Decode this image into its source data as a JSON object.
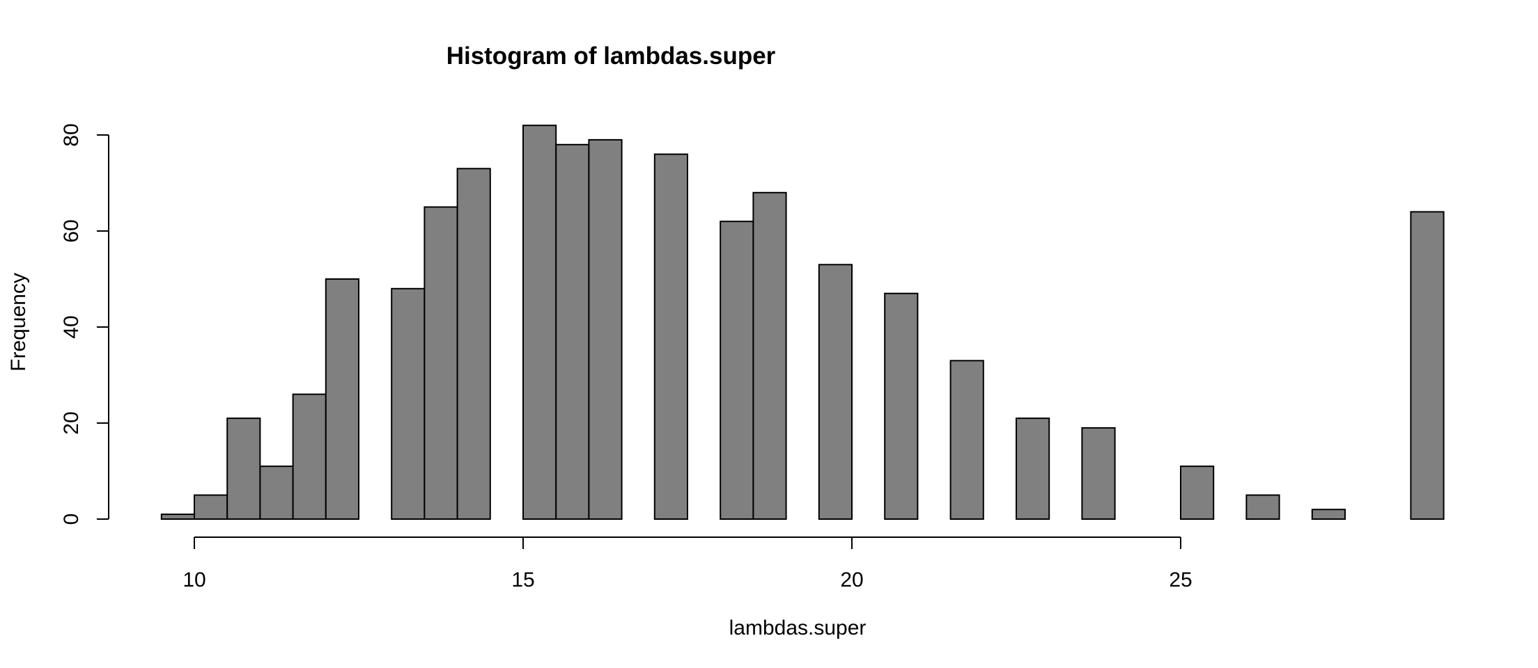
{
  "chart_data": {
    "type": "bar",
    "title": "Histogram of lambdas.super",
    "xlabel": "lambdas.super",
    "ylabel": "Frequency",
    "x_ticks": [
      10,
      15,
      20,
      25
    ],
    "x_tick_labels": [
      "10",
      "15",
      "20",
      "25"
    ],
    "y_ticks": [
      0,
      20,
      40,
      60,
      80
    ],
    "y_tick_labels": [
      "0",
      "20",
      "40",
      "60",
      "80"
    ],
    "xlim": [
      9.5,
      29
    ],
    "ylim": [
      0,
      82
    ],
    "bin_width": 0.5,
    "bins": [
      {
        "start": 9.5,
        "end": 10.0,
        "value": 1
      },
      {
        "start": 10.0,
        "end": 10.5,
        "value": 5
      },
      {
        "start": 10.5,
        "end": 11.0,
        "value": 21
      },
      {
        "start": 11.0,
        "end": 11.5,
        "value": 11
      },
      {
        "start": 11.5,
        "end": 12.0,
        "value": 26
      },
      {
        "start": 12.0,
        "end": 12.5,
        "value": 50
      },
      {
        "start": 12.5,
        "end": 13.0,
        "value": 0
      },
      {
        "start": 13.0,
        "end": 13.5,
        "value": 48
      },
      {
        "start": 13.5,
        "end": 14.0,
        "value": 65
      },
      {
        "start": 14.0,
        "end": 14.5,
        "value": 73
      },
      {
        "start": 14.5,
        "end": 15.0,
        "value": 0
      },
      {
        "start": 15.0,
        "end": 15.5,
        "value": 82
      },
      {
        "start": 15.5,
        "end": 16.0,
        "value": 78
      },
      {
        "start": 16.0,
        "end": 16.5,
        "value": 79
      },
      {
        "start": 16.5,
        "end": 17.0,
        "value": 0
      },
      {
        "start": 17.0,
        "end": 17.5,
        "value": 76
      },
      {
        "start": 17.5,
        "end": 18.0,
        "value": 0
      },
      {
        "start": 18.0,
        "end": 18.5,
        "value": 62
      },
      {
        "start": 18.5,
        "end": 19.0,
        "value": 68
      },
      {
        "start": 19.0,
        "end": 19.5,
        "value": 0
      },
      {
        "start": 19.5,
        "end": 20.0,
        "value": 53
      },
      {
        "start": 20.0,
        "end": 20.5,
        "value": 0
      },
      {
        "start": 20.5,
        "end": 21.0,
        "value": 47
      },
      {
        "start": 21.0,
        "end": 21.5,
        "value": 0
      },
      {
        "start": 21.5,
        "end": 22.0,
        "value": 33
      },
      {
        "start": 22.0,
        "end": 22.5,
        "value": 0
      },
      {
        "start": 22.5,
        "end": 23.0,
        "value": 21
      },
      {
        "start": 23.0,
        "end": 23.5,
        "value": 0
      },
      {
        "start": 23.5,
        "end": 24.0,
        "value": 19
      },
      {
        "start": 24.0,
        "end": 24.5,
        "value": 0
      },
      {
        "start": 24.5,
        "end": 25.0,
        "value": 0
      },
      {
        "start": 25.0,
        "end": 25.5,
        "value": 11
      },
      {
        "start": 25.5,
        "end": 26.0,
        "value": 0
      },
      {
        "start": 26.0,
        "end": 26.5,
        "value": 5
      },
      {
        "start": 26.5,
        "end": 27.0,
        "value": 0
      },
      {
        "start": 27.0,
        "end": 27.5,
        "value": 2
      },
      {
        "start": 27.5,
        "end": 28.0,
        "value": 0
      },
      {
        "start": 28.0,
        "end": 28.5,
        "value": 0
      },
      {
        "start": 28.5,
        "end": 29.0,
        "value": 64
      }
    ],
    "grid": false,
    "legend": "none",
    "bar_color": "#808080",
    "border_color": "#000000"
  }
}
